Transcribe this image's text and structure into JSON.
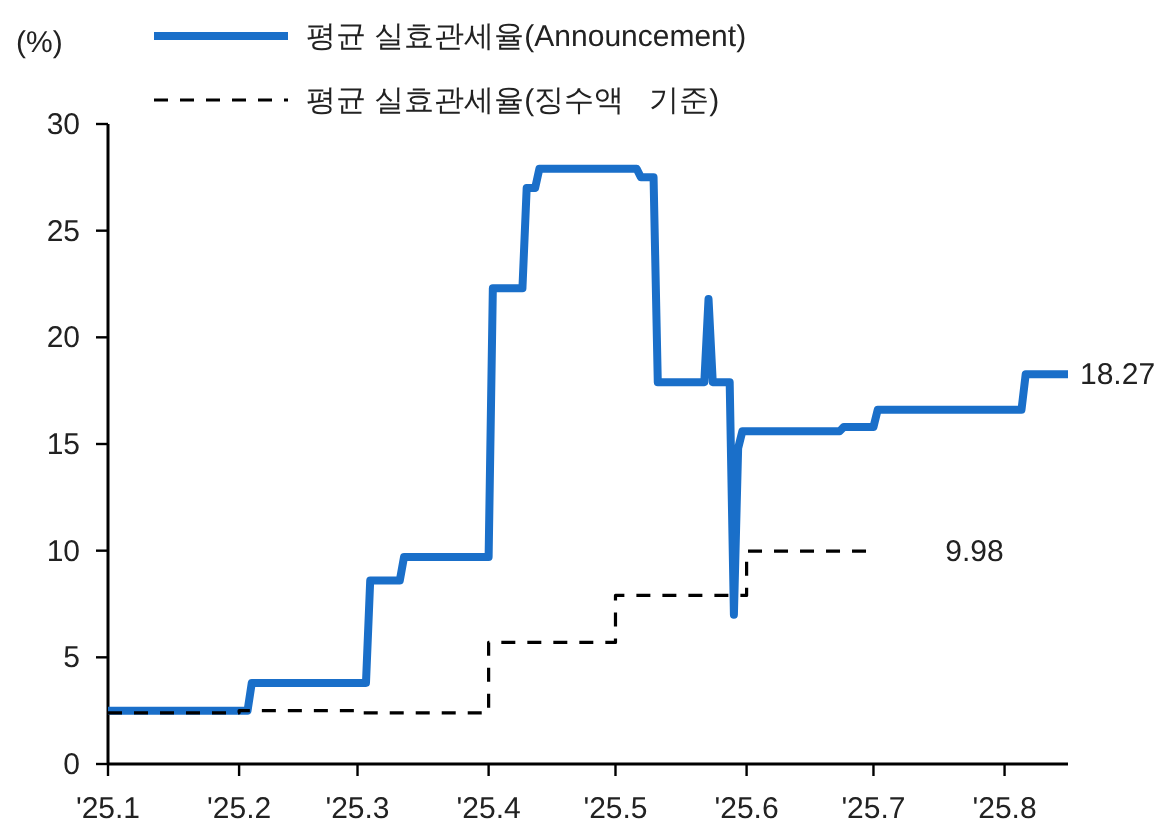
{
  "chart_data": {
    "type": "line",
    "ylabel": "(%)",
    "legend": "top left",
    "grid": false,
    "xlim": [
      "2025-01-01",
      "2025-08-16"
    ],
    "xticks": [
      {
        "value": "2025-01-01",
        "label": "'25.1"
      },
      {
        "value": "2025-02-01",
        "label": "'25.2"
      },
      {
        "value": "2025-03-01",
        "label": "'25.3"
      },
      {
        "value": "2025-04-01",
        "label": "'25.4"
      },
      {
        "value": "2025-05-01",
        "label": "'25.5"
      },
      {
        "value": "2025-06-01",
        "label": "'25.6"
      },
      {
        "value": "2025-07-01",
        "label": "'25.7"
      },
      {
        "value": "2025-08-01",
        "label": "'25.8"
      }
    ],
    "ylim": [
      0,
      30
    ],
    "yticks": [
      0,
      5,
      10,
      15,
      20,
      25,
      30
    ],
    "series": [
      {
        "name": "평균 실효관세율(Announcement)",
        "type": "line",
        "color": "#1a6fc9",
        "line_style": "solid",
        "x": [
          "2025-01-01",
          "2025-02-03",
          "2025-02-04",
          "2025-03-03",
          "2025-03-04",
          "2025-03-11",
          "2025-03-12",
          "2025-04-01",
          "2025-04-02",
          "2025-04-09",
          "2025-04-10",
          "2025-04-12",
          "2025-04-13",
          "2025-05-06",
          "2025-05-07",
          "2025-05-10",
          "2025-05-11",
          "2025-05-22",
          "2025-05-23",
          "2025-05-24",
          "2025-05-28",
          "2025-05-29",
          "2025-05-30",
          "2025-05-31",
          "2025-06-23",
          "2025-06-24",
          "2025-07-01",
          "2025-07-02",
          "2025-08-05",
          "2025-08-06",
          "2025-08-16"
        ],
        "values": [
          2.5,
          2.5,
          3.8,
          3.8,
          8.6,
          8.6,
          9.7,
          9.7,
          22.3,
          22.3,
          27.0,
          27.0,
          27.9,
          27.9,
          27.5,
          27.5,
          17.9,
          17.9,
          21.8,
          17.9,
          17.9,
          7.0,
          14.8,
          15.6,
          15.6,
          15.8,
          15.8,
          16.6,
          16.6,
          18.27,
          18.27
        ]
      },
      {
        "name": "평균 실효관세율(징수액   기준)",
        "type": "step",
        "color": "#000000",
        "line_style": "dashed",
        "x": [
          "2025-01-01",
          "2025-02-01",
          "2025-03-01",
          "2025-04-01",
          "2025-05-01",
          "2025-06-01",
          "2025-06-30"
        ],
        "values": [
          2.4,
          2.5,
          2.4,
          5.7,
          7.9,
          9.98,
          9.98
        ]
      }
    ],
    "annotations": [
      {
        "text": "18.27",
        "x": "2025-08-16",
        "y": 18.27
      },
      {
        "text": "9.98",
        "x": "2025-06-30",
        "y": 9.98
      }
    ]
  }
}
